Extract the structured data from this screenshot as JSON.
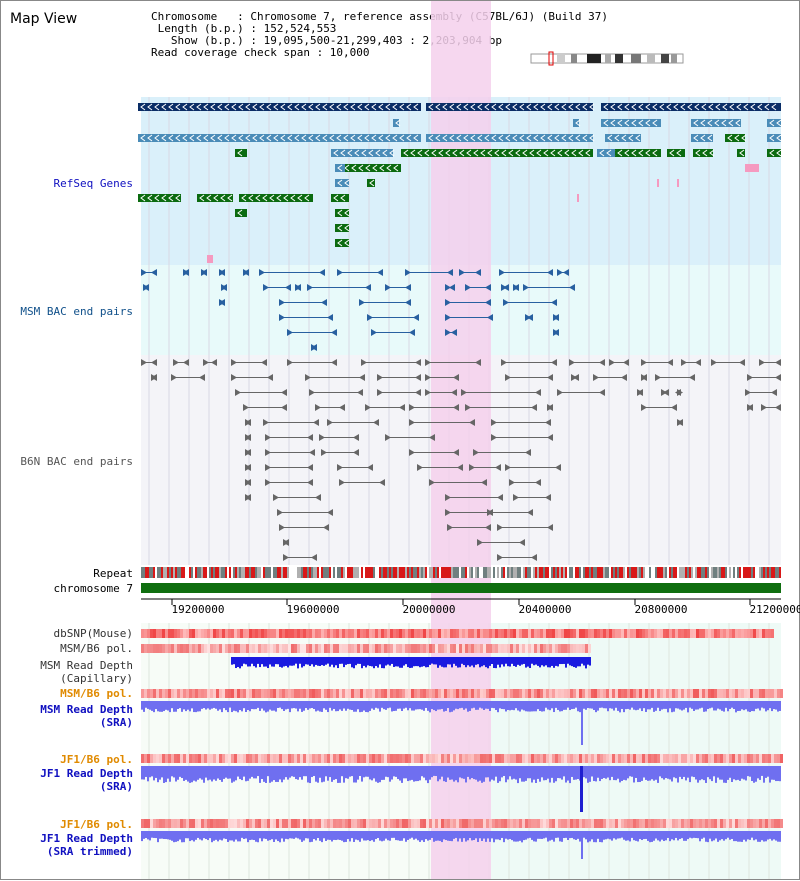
{
  "title": "Map View",
  "info": {
    "chromosome": "Chromosome   : Chromosome 7, reference assembly (C57BL/6J) (Build 37)",
    "length": "Length (b.p.) : 152,524,553",
    "show": "Show (b.p.) : 19,095,500-21,299,403 : 2,203,904 bp",
    "coverage": "Read coverage check span : 10,000"
  },
  "tracks": {
    "refseq": "RefSeq Genes",
    "msm_bac": "MSM BAC end pairs",
    "b6n_bac": "B6N BAC end pairs",
    "repeat": "Repeat",
    "chrom": "chromosome 7",
    "dbsnp": "dbSNP(Mouse)",
    "msm_b6_pol1": "MSM/B6 pol.",
    "msm_depth_cap": "MSM Read Depth\n(Capillary)",
    "msm_b6_pol2": "MSM/B6 pol.",
    "msm_depth_sra": "MSM Read Depth\n(SRA)",
    "jf1_b6_pol1": "JF1/B6 pol.",
    "jf1_depth_sra": "JF1 Read Depth\n(SRA)",
    "jf1_b6_pol2": "JF1/B6 pol.",
    "jf1_depth_trim": "JF1 Read Depth\n(SRA trimmed)"
  },
  "ruler_ticks": [
    "19200000",
    "19600000",
    "20000000",
    "20400000",
    "20800000",
    "21200000"
  ],
  "colors": {
    "refseq_bg": "#daf0fa",
    "bac_bg": "#e8fafa",
    "b6n_bg": "#f4f4f8",
    "highlight": "#f5d0ec",
    "gene_dark": "#0a2d66",
    "gene_mid": "#4a8cb8",
    "gene_green": "#0b6b10",
    "msm_blue": "#2860a0",
    "b6n_gray": "#555",
    "pol_red": "#e03030",
    "depth_blue": "#6f6ff0",
    "depth_dark": "#1f1fd0"
  }
}
